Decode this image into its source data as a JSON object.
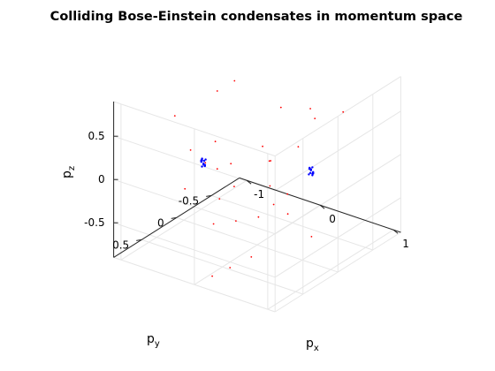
{
  "chart_data": {
    "type": "scatter",
    "projection": "3d",
    "title": "Colliding Bose-Einstein condensates in momentum space",
    "xlabel": {
      "main": "p",
      "sub": "x"
    },
    "ylabel": {
      "main": "p",
      "sub": "y"
    },
    "zlabel": {
      "main": "p",
      "sub": "z"
    },
    "xlim": [
      -1.1,
      1.1
    ],
    "ylim": [
      -0.9,
      0.9
    ],
    "zlim": [
      -0.9,
      0.9
    ],
    "xticks": [
      {
        "v": -1,
        "label": "-1"
      },
      {
        "v": 0,
        "label": "0"
      },
      {
        "v": 1,
        "label": "1"
      }
    ],
    "yticks": [
      {
        "v": -0.5,
        "label": "-0.5"
      },
      {
        "v": 0,
        "label": "0"
      },
      {
        "v": 0.5,
        "label": "0.5"
      }
    ],
    "zticks": [
      {
        "v": -0.5,
        "label": "-0.5"
      },
      {
        "v": 0,
        "label": "0"
      },
      {
        "v": 0.5,
        "label": "0.5"
      }
    ],
    "grid": true,
    "colors": {
      "scattered": "#ff0000",
      "condensate": "#0000ff",
      "grid": "#e6e6e6",
      "axis": "#262626"
    },
    "series": [
      {
        "color": "#ff0000",
        "points": [
          [
            -0.1,
            0.85,
            0.6
          ],
          [
            0.15,
            0.9,
            0.55
          ],
          [
            0.45,
            0.85,
            0.6
          ],
          [
            -0.6,
            0.55,
            0.7
          ],
          [
            0.0,
            0.6,
            0.6
          ],
          [
            0.55,
            0.5,
            0.65
          ],
          [
            -0.45,
            0.1,
            0.8
          ],
          [
            0.75,
            0.2,
            0.55
          ],
          [
            -0.5,
            -0.2,
            0.75
          ],
          [
            0.5,
            -0.3,
            0.55
          ],
          [
            0.45,
            0.3,
            0.35
          ],
          [
            0.2,
            -0.55,
            0.45
          ],
          [
            -0.2,
            -0.55,
            0.35
          ],
          [
            0.6,
            -0.6,
            0.5
          ],
          [
            0.65,
            0.25,
            0.0
          ],
          [
            0.75,
            0.35,
            -0.15
          ],
          [
            -0.45,
            0.1,
            -0.1
          ],
          [
            0.3,
            0.4,
            -0.75
          ],
          [
            -0.6,
            -0.3,
            -0.55
          ],
          [
            -0.3,
            -0.55,
            -0.8
          ],
          [
            -0.15,
            -0.35,
            -0.15
          ],
          [
            0.2,
            0.6,
            -0.8
          ],
          [
            -0.8,
            -0.3,
            -0.75
          ],
          [
            -0.5,
            0.1,
            -0.75
          ],
          [
            -0.35,
            -0.55,
            -0.6
          ],
          [
            0.55,
            -0.2,
            -0.75
          ],
          [
            -0.7,
            0.3,
            -0.3
          ],
          [
            0.1,
            0.75,
            -0.85
          ],
          [
            0.35,
            0.35,
            -0.3
          ],
          [
            -0.1,
            0.2,
            -0.55
          ]
        ]
      },
      {
        "color": "#0000ff",
        "points": [
          [
            0.78,
            0.05,
            0.21
          ],
          [
            0.8,
            0.04,
            0.19
          ],
          [
            0.77,
            0.07,
            0.17
          ],
          [
            0.79,
            0.06,
            0.23
          ],
          [
            0.81,
            0.05,
            0.18
          ],
          [
            0.78,
            0.03,
            0.16
          ],
          [
            0.8,
            0.08,
            0.2
          ],
          [
            0.76,
            0.05,
            0.22
          ],
          [
            0.82,
            0.06,
            0.2
          ],
          [
            0.79,
            0.04,
            0.15
          ],
          [
            0.77,
            0.06,
            0.24
          ],
          [
            0.8,
            0.05,
            0.25
          ],
          [
            -0.78,
            -0.05,
            -0.21
          ],
          [
            -0.8,
            -0.04,
            -0.19
          ],
          [
            -0.77,
            -0.07,
            -0.17
          ],
          [
            -0.79,
            -0.06,
            -0.23
          ],
          [
            -0.81,
            -0.05,
            -0.18
          ],
          [
            -0.78,
            -0.03,
            -0.16
          ],
          [
            -0.8,
            -0.08,
            -0.2
          ],
          [
            -0.76,
            -0.05,
            -0.22
          ],
          [
            -0.82,
            -0.06,
            -0.2
          ],
          [
            -0.79,
            -0.04,
            -0.15
          ],
          [
            -0.77,
            -0.06,
            -0.24
          ],
          [
            -0.8,
            -0.05,
            -0.25
          ]
        ]
      }
    ]
  }
}
